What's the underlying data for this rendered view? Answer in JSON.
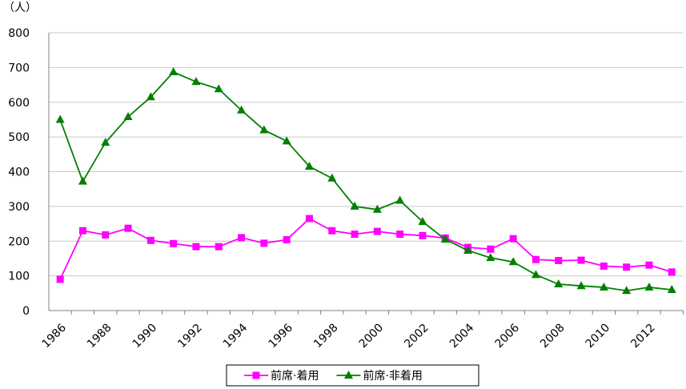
{
  "chart_data": {
    "type": "line",
    "y_label": "（人）",
    "categories": [
      "1986",
      null,
      "1988",
      null,
      "1990",
      null,
      "1992",
      null,
      "1994",
      null,
      "1996",
      null,
      "1998",
      null,
      "2000",
      null,
      "2002",
      null,
      "2004",
      null,
      "2006",
      null,
      "2008",
      null,
      "2010",
      null,
      "2012",
      null
    ],
    "series": [
      {
        "name": "前席·着用",
        "color": "#ff00ff",
        "marker": "square",
        "values": [
          90,
          230,
          218,
          237,
          202,
          193,
          184,
          184,
          210,
          194,
          204,
          265,
          230,
          220,
          228,
          220,
          216,
          209,
          182,
          177,
          207,
          147,
          144,
          145,
          128,
          125,
          131,
          111
        ]
      },
      {
        "name": "前席·非着用",
        "color": "#008000",
        "marker": "triangle",
        "values": [
          550,
          372,
          484,
          558,
          615,
          687,
          659,
          638,
          577,
          520,
          488,
          415,
          381,
          300,
          291,
          317,
          256,
          205,
          173,
          152,
          140,
          103,
          76,
          71,
          67,
          57,
          67,
          60
        ]
      }
    ],
    "ylim": [
      0,
      800
    ],
    "yticks": [
      0,
      100,
      200,
      300,
      400,
      500,
      600,
      700,
      800
    ],
    "grid": true,
    "legend": "bottom"
  }
}
